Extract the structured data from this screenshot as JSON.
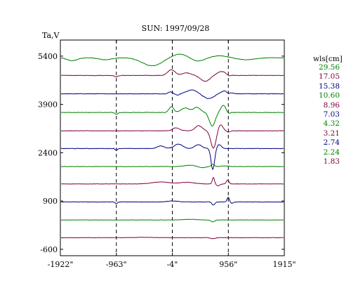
{
  "chart_data": {
    "type": "line",
    "title": "SUN: 1997/09/28",
    "ylabel": "Ta,V",
    "xlabel": "",
    "x_ticks": [
      "-1922\"",
      "-963\"",
      "-4\"",
      "956\"",
      "1915\""
    ],
    "x_tick_values": [
      -1922,
      -963,
      -4,
      956,
      1915
    ],
    "xlim": [
      -1922,
      1915
    ],
    "y_ticks": [
      5400,
      3900,
      2400,
      900,
      -600
    ],
    "ylim": [
      -800,
      5900
    ],
    "vertical_markers": [
      -963,
      -4,
      956
    ],
    "legend_title": "wls[cm]",
    "series": [
      {
        "name": "29.56",
        "color": "#008000",
        "baseline": 5350
      },
      {
        "name": "17.05",
        "color": "#800040",
        "baseline": 4800
      },
      {
        "name": "15.38",
        "color": "#000080",
        "baseline": 4230
      },
      {
        "name": "10.60",
        "color": "#008000",
        "baseline": 3650
      },
      {
        "name": "8.96",
        "color": "#800040",
        "baseline": 3080
      },
      {
        "name": "7.03",
        "color": "#000080",
        "baseline": 2530
      },
      {
        "name": "4.32",
        "color": "#008000",
        "baseline": 1970
      },
      {
        "name": "3.21",
        "color": "#800040",
        "baseline": 1430
      },
      {
        "name": "2.74",
        "color": "#000080",
        "baseline": 870
      },
      {
        "name": "2.24",
        "color": "#008000",
        "baseline": 310
      },
      {
        "name": "1.83",
        "color": "#800040",
        "baseline": -240
      }
    ]
  }
}
